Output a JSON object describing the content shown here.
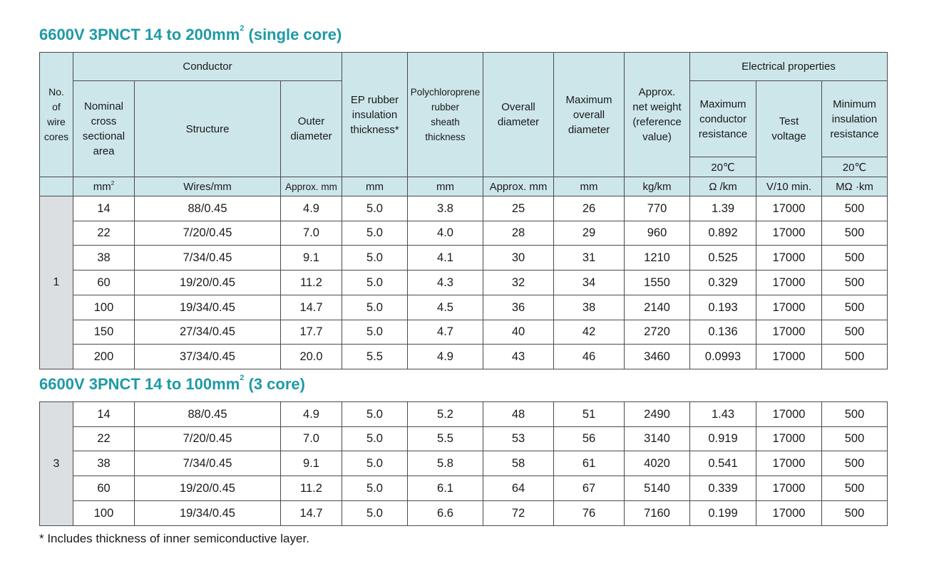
{
  "title1": {
    "text": "6600V 3PNCT 14 to 200mm",
    "sup": "2",
    "suffix": " (single core)"
  },
  "title2": {
    "text": "6600V 3PNCT 14 to 100mm",
    "sup": "2",
    "suffix": " (3 core)"
  },
  "headers": {
    "cores": [
      "No.",
      "of",
      "wire",
      "cores"
    ],
    "conductor": "Conductor",
    "nominal": [
      "Nominal",
      "cross",
      "sectional",
      "area"
    ],
    "structure": "Structure",
    "outer": [
      "Outer",
      "diameter"
    ],
    "ep": [
      "EP rubber",
      "insulation",
      "thickness*"
    ],
    "poly": [
      "Polychloroprene",
      "rubber",
      "sheath",
      "thickness"
    ],
    "overall": [
      "Overall",
      "diameter"
    ],
    "maxoverall": [
      "Maximum",
      "overall",
      "diameter"
    ],
    "weight": [
      "Approx.",
      "net weight",
      "(reference",
      "value)"
    ],
    "electrical": "Electrical properties",
    "resistance": [
      "Maximum",
      "conductor",
      "resistance"
    ],
    "testv": [
      "Test",
      "voltage"
    ],
    "insres": [
      "Minimum",
      "insulation",
      "resistance"
    ],
    "temp1": "20℃",
    "temp2": "20℃"
  },
  "units": {
    "nominal": "mm",
    "nominal_sup": "2",
    "structure": "Wires/mm",
    "outer": "Approx. mm",
    "ep": "mm",
    "poly": "mm",
    "overall": "Approx. mm",
    "maxoverall": "mm",
    "weight": "kg/km",
    "resistance": "Ω /km",
    "testv": "V/10 min.",
    "insres": "MΩ ·km"
  },
  "table1": {
    "cores": "1",
    "rows": [
      [
        "14",
        "88/0.45",
        "4.9",
        "5.0",
        "3.8",
        "25",
        "26",
        "770",
        "1.39",
        "17000",
        "500"
      ],
      [
        "22",
        "7/20/0.45",
        "7.0",
        "5.0",
        "4.0",
        "28",
        "29",
        "960",
        "0.892",
        "17000",
        "500"
      ],
      [
        "38",
        "7/34/0.45",
        "9.1",
        "5.0",
        "4.1",
        "30",
        "31",
        "1210",
        "0.525",
        "17000",
        "500"
      ],
      [
        "60",
        "19/20/0.45",
        "11.2",
        "5.0",
        "4.3",
        "32",
        "34",
        "1550",
        "0.329",
        "17000",
        "500"
      ],
      [
        "100",
        "19/34/0.45",
        "14.7",
        "5.0",
        "4.5",
        "36",
        "38",
        "2140",
        "0.193",
        "17000",
        "500"
      ],
      [
        "150",
        "27/34/0.45",
        "17.7",
        "5.0",
        "4.7",
        "40",
        "42",
        "2720",
        "0.136",
        "17000",
        "500"
      ],
      [
        "200",
        "37/34/0.45",
        "20.0",
        "5.5",
        "4.9",
        "43",
        "46",
        "3460",
        "0.0993",
        "17000",
        "500"
      ]
    ]
  },
  "table2": {
    "cores": "3",
    "rows": [
      [
        "14",
        "88/0.45",
        "4.9",
        "5.0",
        "5.2",
        "48",
        "51",
        "2490",
        "1.43",
        "17000",
        "500"
      ],
      [
        "22",
        "7/20/0.45",
        "7.0",
        "5.0",
        "5.5",
        "53",
        "56",
        "3140",
        "0.919",
        "17000",
        "500"
      ],
      [
        "38",
        "7/34/0.45",
        "9.1",
        "5.0",
        "5.8",
        "58",
        "61",
        "4020",
        "0.541",
        "17000",
        "500"
      ],
      [
        "60",
        "19/20/0.45",
        "11.2",
        "5.0",
        "6.1",
        "64",
        "67",
        "5140",
        "0.339",
        "17000",
        "500"
      ],
      [
        "100",
        "19/34/0.45",
        "14.7",
        "5.0",
        "6.6",
        "72",
        "76",
        "7160",
        "0.199",
        "17000",
        "500"
      ]
    ]
  },
  "footnote": "* Includes thickness of inner semiconductive layer.",
  "colors": {
    "title": "#1e9aa6",
    "header_bg": "#cde6ea",
    "cores_bg": "#dcdfe1"
  }
}
